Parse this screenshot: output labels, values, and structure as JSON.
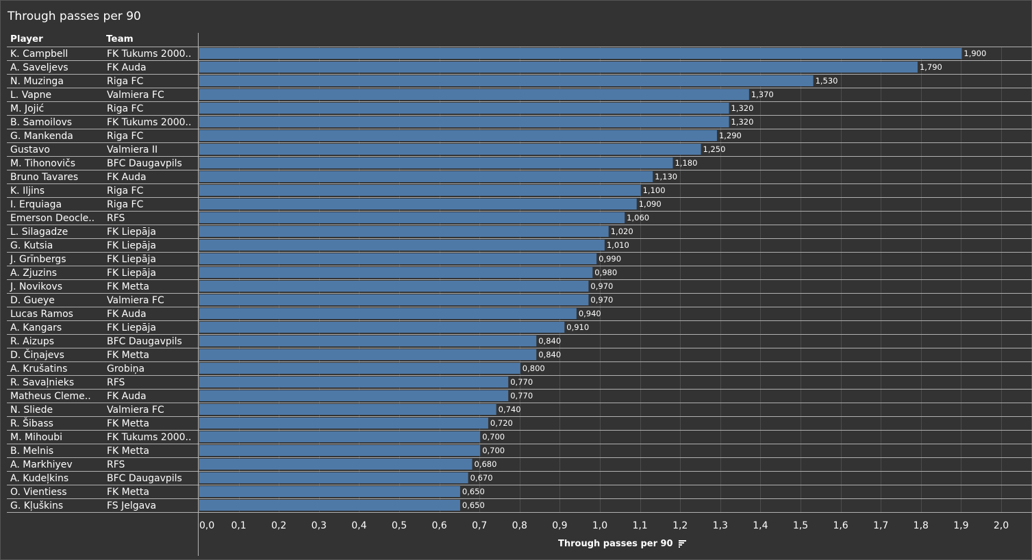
{
  "title": "Through passes per 90",
  "headers": {
    "player": "Player",
    "team": "Team"
  },
  "sort_icon": "sort-descending-icon",
  "colors": {
    "background": "#333333",
    "bar": "#4e79a7",
    "grid": "#4d4d4d",
    "rule": "#b3b3b3",
    "text": "#ffffff"
  },
  "chart_data": {
    "type": "bar",
    "orientation": "horizontal",
    "title": "Through passes per 90",
    "xlabel": "Through passes per 90",
    "xlim": [
      0,
      2.0
    ],
    "xticks": [
      "0,0",
      "0,1",
      "0,2",
      "0,3",
      "0,4",
      "0,5",
      "0,6",
      "0,7",
      "0,8",
      "0,9",
      "1,0",
      "1,1",
      "1,2",
      "1,3",
      "1,4",
      "1,5",
      "1,6",
      "1,7",
      "1,8",
      "1,9",
      "2,0"
    ],
    "rows": [
      {
        "player": "K. Campbell",
        "team": "FK Tukums 2000..",
        "value": 1.9,
        "label": "1,900"
      },
      {
        "player": "A. Saveljevs",
        "team": "FK Auda",
        "value": 1.79,
        "label": "1,790"
      },
      {
        "player": "N. Muzinga",
        "team": "Riga FC",
        "value": 1.53,
        "label": "1,530"
      },
      {
        "player": "L. Vapne",
        "team": "Valmiera FC",
        "value": 1.37,
        "label": "1,370"
      },
      {
        "player": "M. Jojić",
        "team": "Riga FC",
        "value": 1.32,
        "label": "1,320"
      },
      {
        "player": "B. Samoilovs",
        "team": "FK Tukums 2000..",
        "value": 1.32,
        "label": "1,320"
      },
      {
        "player": "G. Mankenda",
        "team": "Riga FC",
        "value": 1.29,
        "label": "1,290"
      },
      {
        "player": "Gustavo",
        "team": "Valmiera II",
        "value": 1.25,
        "label": "1,250"
      },
      {
        "player": "M. Tihonovičs",
        "team": "BFC Daugavpils",
        "value": 1.18,
        "label": "1,180"
      },
      {
        "player": "Bruno Tavares",
        "team": "FK Auda",
        "value": 1.13,
        "label": "1,130"
      },
      {
        "player": "K. Iljins",
        "team": "Riga FC",
        "value": 1.1,
        "label": "1,100"
      },
      {
        "player": "I. Erquiaga",
        "team": "Riga FC",
        "value": 1.09,
        "label": "1,090"
      },
      {
        "player": "Emerson Deocle..",
        "team": "RFS",
        "value": 1.06,
        "label": "1,060"
      },
      {
        "player": "L. Silagadze",
        "team": "FK Liepāja",
        "value": 1.02,
        "label": "1,020"
      },
      {
        "player": "G. Kutsia",
        "team": "FK Liepāja",
        "value": 1.01,
        "label": "1,010"
      },
      {
        "player": "J. Grīnbergs",
        "team": "FK Liepāja",
        "value": 0.99,
        "label": "0,990"
      },
      {
        "player": "A. Zjuzins",
        "team": "FK Liepāja",
        "value": 0.98,
        "label": "0,980"
      },
      {
        "player": "J. Novikovs",
        "team": "FK Metta",
        "value": 0.97,
        "label": "0,970"
      },
      {
        "player": "D. Gueye",
        "team": "Valmiera FC",
        "value": 0.97,
        "label": "0,970"
      },
      {
        "player": "Lucas Ramos",
        "team": "FK Auda",
        "value": 0.94,
        "label": "0,940"
      },
      {
        "player": "A. Kangars",
        "team": "FK Liepāja",
        "value": 0.91,
        "label": "0,910"
      },
      {
        "player": "R. Aizups",
        "team": "BFC Daugavpils",
        "value": 0.84,
        "label": "0,840"
      },
      {
        "player": "D. Čiņajevs",
        "team": "FK Metta",
        "value": 0.84,
        "label": "0,840"
      },
      {
        "player": "A. Krušatins",
        "team": "Grobiņa",
        "value": 0.8,
        "label": "0,800"
      },
      {
        "player": "R. Savaļnieks",
        "team": "RFS",
        "value": 0.77,
        "label": "0,770"
      },
      {
        "player": "Matheus Cleme..",
        "team": "FK Auda",
        "value": 0.77,
        "label": "0,770"
      },
      {
        "player": "N. Sliede",
        "team": "Valmiera FC",
        "value": 0.74,
        "label": "0,740"
      },
      {
        "player": "R. Šibass",
        "team": "FK Metta",
        "value": 0.72,
        "label": "0,720"
      },
      {
        "player": "M. Mihoubi",
        "team": "FK Tukums 2000..",
        "value": 0.7,
        "label": "0,700"
      },
      {
        "player": "B. Melnis",
        "team": "FK Metta",
        "value": 0.7,
        "label": "0,700"
      },
      {
        "player": "A. Markhiyev",
        "team": "RFS",
        "value": 0.68,
        "label": "0,680"
      },
      {
        "player": "A. Kudeļkins",
        "team": "BFC Daugavpils",
        "value": 0.67,
        "label": "0,670"
      },
      {
        "player": "O. Vientiess",
        "team": "FK Metta",
        "value": 0.65,
        "label": "0,650"
      },
      {
        "player": "G. Kļuškins",
        "team": "FS Jelgava",
        "value": 0.65,
        "label": "0,650"
      }
    ]
  }
}
